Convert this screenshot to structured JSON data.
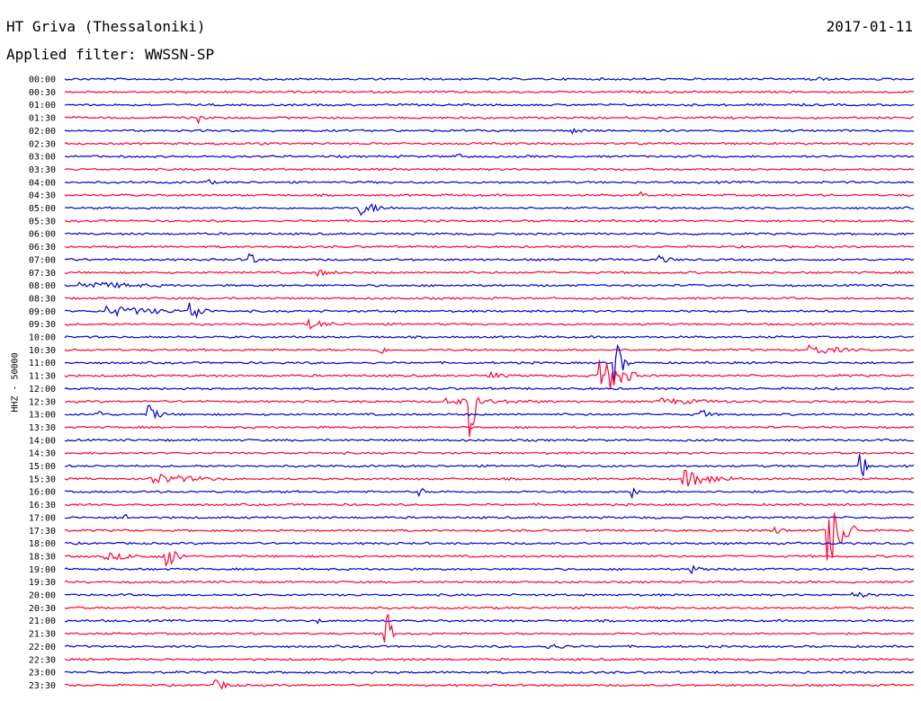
{
  "header": {
    "station": "HT Griva (Thessaloniki)",
    "date": "2017-01-11",
    "filter": "Applied filter: WWSSN-SP"
  },
  "chart_data": {
    "type": "line",
    "ylabel": "HHZ - 50000",
    "colors": {
      "even": "#0000cc",
      "odd": "#ff0033"
    },
    "rows": [
      "00:00",
      "00:30",
      "01:00",
      "01:30",
      "02:00",
      "02:30",
      "03:00",
      "03:30",
      "04:00",
      "04:30",
      "05:00",
      "05:30",
      "06:00",
      "06:30",
      "07:00",
      "07:30",
      "08:00",
      "08:30",
      "09:00",
      "09:30",
      "10:00",
      "10:30",
      "11:00",
      "11:30",
      "12:00",
      "12:30",
      "13:00",
      "13:30",
      "14:00",
      "14:30",
      "15:00",
      "15:30",
      "16:00",
      "16:30",
      "17:00",
      "17:30",
      "18:00",
      "18:30",
      "19:00",
      "19:30",
      "20:00",
      "20:30",
      "21:00",
      "21:30",
      "22:00",
      "22:30",
      "23:00",
      "23:30"
    ],
    "events": [
      {
        "row": 0,
        "t": 0.88,
        "amp": 3,
        "dur": 0.05
      },
      {
        "row": 3,
        "t": 0.16,
        "amp": 6,
        "dur": 0.01
      },
      {
        "row": 4,
        "t": 0.6,
        "amp": 5,
        "dur": 0.015
      },
      {
        "row": 5,
        "t": 0.23,
        "amp": 5,
        "dur": 0.005
      },
      {
        "row": 6,
        "t": 0.46,
        "amp": 4,
        "dur": 0.03
      },
      {
        "row": 8,
        "t": 0.17,
        "amp": 4,
        "dur": 0.01
      },
      {
        "row": 9,
        "t": 0.68,
        "amp": 5,
        "dur": 0.004
      },
      {
        "row": 10,
        "t": 0.35,
        "amp": 8,
        "dur": 0.04
      },
      {
        "row": 14,
        "t": 0.22,
        "amp": 12,
        "dur": 0.005
      },
      {
        "row": 14,
        "t": 0.7,
        "amp": 5,
        "dur": 0.03
      },
      {
        "row": 15,
        "t": 0.3,
        "amp": 4,
        "dur": 0.04
      },
      {
        "row": 16,
        "t": 0.02,
        "amp": 5,
        "dur": 0.15
      },
      {
        "row": 18,
        "t": 0.05,
        "amp": 6,
        "dur": 0.14
      },
      {
        "row": 18,
        "t": 0.15,
        "amp": 14,
        "dur": 0.02
      },
      {
        "row": 19,
        "t": 0.29,
        "amp": 5,
        "dur": 0.05
      },
      {
        "row": 21,
        "t": 0.37,
        "amp": 6,
        "dur": 0.015
      },
      {
        "row": 21,
        "t": 0.88,
        "amp": 6,
        "dur": 0.07
      },
      {
        "row": 22,
        "t": 0.65,
        "amp": 26,
        "dur": 0.01
      },
      {
        "row": 23,
        "t": 0.63,
        "amp": 28,
        "dur": 0.04
      },
      {
        "row": 23,
        "t": 0.5,
        "amp": 5,
        "dur": 0.03
      },
      {
        "row": 25,
        "t": 0.48,
        "amp": 40,
        "dur": 0.005
      },
      {
        "row": 25,
        "t": 0.45,
        "amp": 4,
        "dur": 0.2
      },
      {
        "row": 25,
        "t": 0.7,
        "amp": 4,
        "dur": 0.15
      },
      {
        "row": 26,
        "t": 0.04,
        "amp": 6,
        "dur": 0.01
      },
      {
        "row": 26,
        "t": 0.1,
        "amp": 10,
        "dur": 0.02
      },
      {
        "row": 26,
        "t": 0.75,
        "amp": 6,
        "dur": 0.02
      },
      {
        "row": 30,
        "t": 0.94,
        "amp": 14,
        "dur": 0.005
      },
      {
        "row": 31,
        "t": 0.1,
        "amp": 7,
        "dur": 0.1
      },
      {
        "row": 31,
        "t": 0.73,
        "amp": 10,
        "dur": 0.07
      },
      {
        "row": 32,
        "t": 0.67,
        "amp": 7,
        "dur": 0.005
      },
      {
        "row": 32,
        "t": 0.42,
        "amp": 6,
        "dur": 0.003
      },
      {
        "row": 34,
        "t": 0.07,
        "amp": 9,
        "dur": 0.003
      },
      {
        "row": 35,
        "t": 0.9,
        "amp": 40,
        "dur": 0.03
      },
      {
        "row": 35,
        "t": 0.84,
        "amp": 4,
        "dur": 0.02
      },
      {
        "row": 37,
        "t": 0.12,
        "amp": 14,
        "dur": 0.02
      },
      {
        "row": 37,
        "t": 0.05,
        "amp": 4,
        "dur": 0.12
      },
      {
        "row": 38,
        "t": 0.74,
        "amp": 5,
        "dur": 0.03
      },
      {
        "row": 40,
        "t": 0.93,
        "amp": 4,
        "dur": 0.04
      },
      {
        "row": 42,
        "t": 0.3,
        "amp": 3,
        "dur": 0.01
      },
      {
        "row": 43,
        "t": 0.38,
        "amp": 30,
        "dur": 0.004
      },
      {
        "row": 44,
        "t": 0.57,
        "amp": 4,
        "dur": 0.04
      },
      {
        "row": 47,
        "t": 0.18,
        "amp": 6,
        "dur": 0.03
      }
    ]
  }
}
